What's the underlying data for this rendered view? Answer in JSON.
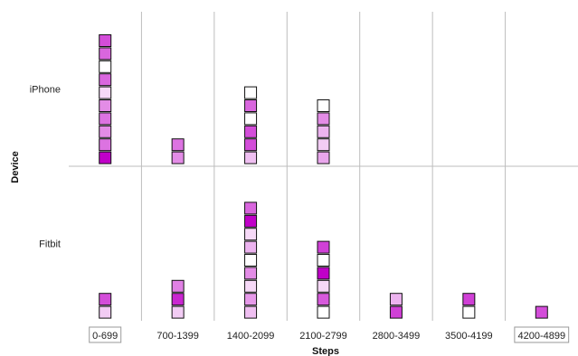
{
  "chart_data": {
    "type": "scatter",
    "subtype": "stacked-square-dot-plot",
    "title": "",
    "xlabel": "Steps",
    "ylabel": "Device",
    "categories": [
      "0-699",
      "700-1399",
      "1400-2099",
      "2100-2799",
      "2800-3499",
      "3500-4199",
      "4200-4899"
    ],
    "boxed_x_labels": [
      "0-699",
      "4200-4899"
    ],
    "rows": [
      "iPhone",
      "Fitbit"
    ],
    "grid": true,
    "color_scale": {
      "low": "#ffffff",
      "high": "#c000c8"
    },
    "series": [
      {
        "name": "iPhone",
        "stacks": [
          [
            1.0,
            0.55,
            0.45,
            0.55,
            0.45,
            0.15,
            0.6,
            0.0,
            0.6,
            0.7
          ],
          [
            0.45,
            0.55
          ],
          [
            0.25,
            0.7,
            0.7,
            0.0,
            0.6,
            0.0
          ],
          [
            0.35,
            0.2,
            0.3,
            0.45,
            0.0
          ],
          [],
          [],
          []
        ]
      },
      {
        "name": "Fitbit",
        "stacks": [
          [
            0.2,
            0.7
          ],
          [
            0.2,
            0.85,
            0.5
          ],
          [
            0.25,
            0.4,
            0.15,
            0.45,
            0.0,
            0.3,
            0.15,
            1.0,
            0.6
          ],
          [
            0.0,
            0.65,
            0.15,
            1.0,
            0.0,
            0.75
          ],
          [
            0.75,
            0.3
          ],
          [
            0.0,
            0.75
          ],
          [
            0.7
          ]
        ]
      }
    ]
  }
}
